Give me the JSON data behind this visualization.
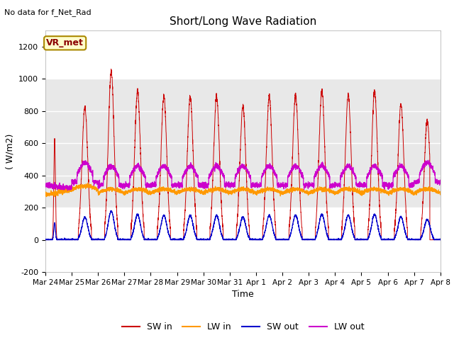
{
  "title": "Short/Long Wave Radiation",
  "xlabel": "Time",
  "ylabel": "( W/m2)",
  "ylim": [
    -200,
    1300
  ],
  "yticks": [
    -200,
    0,
    200,
    400,
    600,
    800,
    1000,
    1200
  ],
  "fig_bg_color": "#ffffff",
  "plot_bg_color": "#ffffff",
  "band_color": "#e8e8e8",
  "note_text": "No data for f_Net_Rad",
  "station_label": "VR_met",
  "legend_colors": [
    "#cc0000",
    "#ff9900",
    "#0000cc",
    "#cc00cc"
  ],
  "x_tick_labels": [
    "Mar 24",
    "Mar 25",
    "Mar 26",
    "Mar 27",
    "Mar 28",
    "Mar 29",
    "Mar 30",
    "Mar 31",
    "Apr 1",
    "Apr 2",
    "Apr 3",
    "Apr 4",
    "Apr 5",
    "Apr 6",
    "Apr 7",
    "Apr 8"
  ],
  "num_days": 15,
  "pts_per_day": 288
}
